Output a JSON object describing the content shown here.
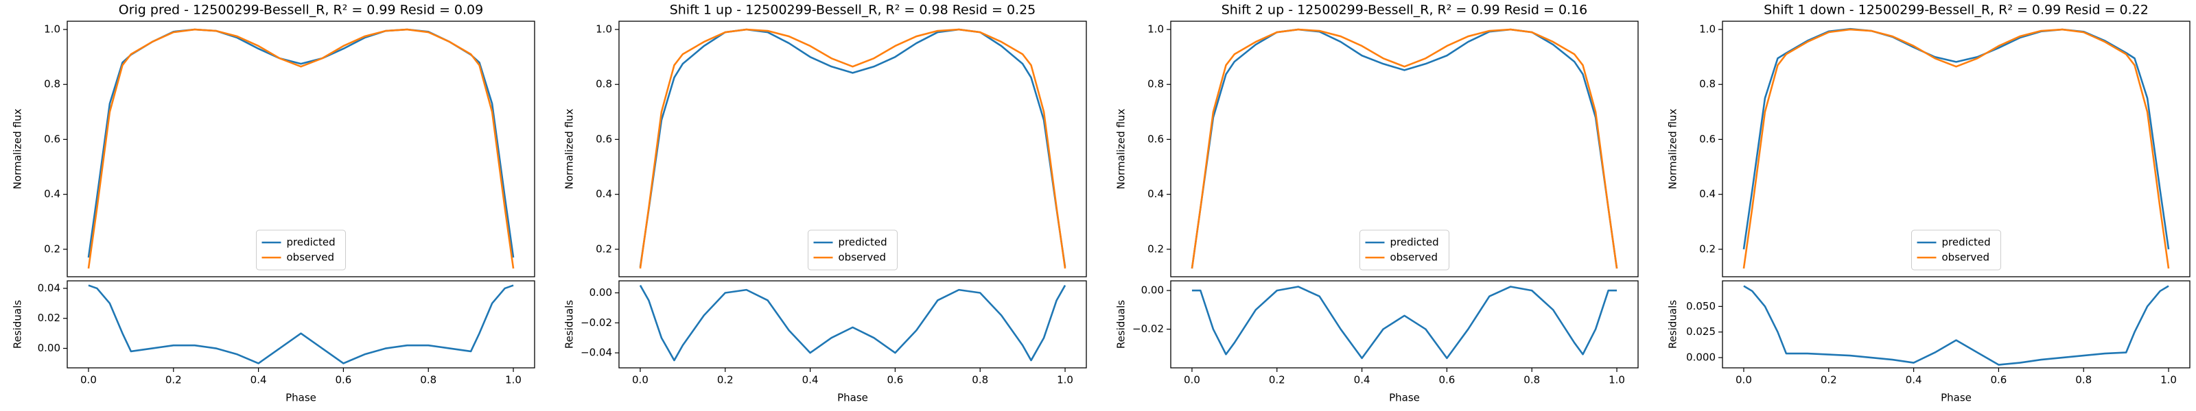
{
  "chart_data": [
    {
      "type": "line",
      "title": "Orig pred - 12500299-Bessell_R, R² = 0.99 Resid = 0.09",
      "ylabel": "Normalized flux",
      "legend": "lower center",
      "x": [
        0,
        0.02,
        0.05,
        0.08,
        0.1,
        0.15,
        0.2,
        0.25,
        0.3,
        0.35,
        0.4,
        0.45,
        0.5,
        0.55,
        0.6,
        0.65,
        0.7,
        0.75,
        0.8,
        0.85,
        0.9,
        0.92,
        0.95,
        0.98,
        1.0
      ],
      "xlim": [
        -0.05,
        1.05
      ],
      "ylim": [
        0.1,
        1.03
      ],
      "yticks": [
        0.2,
        0.4,
        0.6,
        0.8,
        {
          "value": 1,
          "label": "1.0"
        }
      ],
      "series": [
        {
          "name": "predicted",
          "color": "#1f77b4",
          "values": [
            0.17,
            0.39,
            0.73,
            0.88,
            0.908,
            0.955,
            0.992,
            1.0,
            0.995,
            0.97,
            0.93,
            0.895,
            0.875,
            0.895,
            0.93,
            0.97,
            0.995,
            1.0,
            0.992,
            0.955,
            0.908,
            0.88,
            0.73,
            0.39,
            0.17
          ]
        },
        {
          "name": "observed",
          "color": "#ff7f0e",
          "values": [
            0.13,
            0.35,
            0.7,
            0.87,
            0.91,
            0.955,
            0.99,
            1.0,
            0.995,
            0.975,
            0.94,
            0.895,
            0.865,
            0.895,
            0.94,
            0.975,
            0.995,
            1.0,
            0.99,
            0.955,
            0.91,
            0.87,
            0.7,
            0.35,
            0.13
          ]
        }
      ]
    },
    {
      "type": "line",
      "ylabel": "Residuals",
      "xlabel": "Phase",
      "color": "#1f77b4",
      "x": [
        0,
        0.02,
        0.05,
        0.08,
        0.1,
        0.15,
        0.2,
        0.25,
        0.3,
        0.35,
        0.4,
        0.45,
        0.5,
        0.55,
        0.6,
        0.65,
        0.7,
        0.75,
        0.8,
        0.85,
        0.9,
        0.92,
        0.95,
        0.98,
        1.0
      ],
      "values": [
        0.042,
        0.04,
        0.03,
        0.01,
        -0.002,
        0.0,
        0.002,
        0.002,
        0.0,
        -0.004,
        -0.01,
        0.0,
        0.01,
        0.0,
        -0.01,
        -0.004,
        0.0,
        0.002,
        0.002,
        0.0,
        -0.002,
        0.01,
        0.03,
        0.04,
        0.042
      ],
      "xlim": [
        -0.05,
        1.05
      ],
      "ylim": [
        -0.013,
        0.045
      ],
      "xticks": [
        {
          "value": 0,
          "label": "0.0"
        },
        0.2,
        0.4,
        0.6,
        0.8,
        {
          "value": 1,
          "label": "1.0"
        }
      ],
      "yticks": [
        {
          "value": 0,
          "label": "0.00"
        },
        {
          "value": 0.02,
          "label": "0.02"
        },
        {
          "value": 0.04,
          "label": "0.04"
        }
      ]
    },
    {
      "type": "line",
      "title": "Shift 1 up - 12500299-Bessell_R, R² = 0.98 Resid = 0.25",
      "ylabel": "Normalized flux",
      "legend": "lower center",
      "x": [
        0,
        0.02,
        0.05,
        0.08,
        0.1,
        0.15,
        0.2,
        0.25,
        0.3,
        0.35,
        0.4,
        0.45,
        0.5,
        0.55,
        0.6,
        0.65,
        0.7,
        0.75,
        0.8,
        0.85,
        0.9,
        0.92,
        0.95,
        0.98,
        1.0
      ],
      "xlim": [
        -0.05,
        1.05
      ],
      "ylim": [
        0.1,
        1.03
      ],
      "yticks": [
        0.2,
        0.4,
        0.6,
        0.8,
        {
          "value": 1,
          "label": "1.0"
        }
      ],
      "series": [
        {
          "name": "predicted",
          "color": "#1f77b4",
          "values": [
            0.135,
            0.345,
            0.67,
            0.825,
            0.875,
            0.94,
            0.99,
            1.0,
            0.99,
            0.95,
            0.9,
            0.865,
            0.842,
            0.865,
            0.9,
            0.95,
            0.99,
            1.0,
            0.99,
            0.94,
            0.875,
            0.825,
            0.67,
            0.345,
            0.135
          ]
        },
        {
          "name": "observed",
          "color": "#ff7f0e",
          "values": [
            0.13,
            0.35,
            0.7,
            0.87,
            0.91,
            0.955,
            0.99,
            1.0,
            0.995,
            0.975,
            0.94,
            0.895,
            0.865,
            0.895,
            0.94,
            0.975,
            0.995,
            1.0,
            0.99,
            0.955,
            0.91,
            0.87,
            0.7,
            0.35,
            0.13
          ]
        }
      ]
    },
    {
      "type": "line",
      "ylabel": "Residuals",
      "xlabel": "Phase",
      "color": "#1f77b4",
      "x": [
        0,
        0.02,
        0.05,
        0.08,
        0.1,
        0.15,
        0.2,
        0.25,
        0.3,
        0.35,
        0.4,
        0.45,
        0.5,
        0.55,
        0.6,
        0.65,
        0.7,
        0.75,
        0.8,
        0.85,
        0.9,
        0.92,
        0.95,
        0.98,
        1.0
      ],
      "values": [
        0.005,
        -0.005,
        -0.03,
        -0.045,
        -0.035,
        -0.015,
        0.0,
        0.002,
        -0.005,
        -0.025,
        -0.04,
        -0.03,
        -0.023,
        -0.03,
        -0.04,
        -0.025,
        -0.005,
        0.002,
        0.0,
        -0.015,
        -0.035,
        -0.045,
        -0.03,
        -0.005,
        0.005
      ],
      "xlim": [
        -0.05,
        1.05
      ],
      "ylim": [
        -0.05,
        0.008
      ],
      "xticks": [
        {
          "value": 0,
          "label": "0.0"
        },
        0.2,
        0.4,
        0.6,
        0.8,
        {
          "value": 1,
          "label": "1.0"
        }
      ],
      "yticks": [
        {
          "value": -0.04,
          "label": "−0.04"
        },
        {
          "value": -0.02,
          "label": "−0.02"
        },
        {
          "value": 0,
          "label": "0.00"
        }
      ]
    },
    {
      "type": "line",
      "title": "Shift 2 up - 12500299-Bessell_R, R² = 0.99 Resid = 0.16",
      "ylabel": "Normalized flux",
      "legend": "lower center",
      "x": [
        0,
        0.02,
        0.05,
        0.08,
        0.1,
        0.15,
        0.2,
        0.25,
        0.3,
        0.35,
        0.4,
        0.45,
        0.5,
        0.55,
        0.6,
        0.65,
        0.7,
        0.75,
        0.8,
        0.85,
        0.9,
        0.92,
        0.95,
        0.98,
        1.0
      ],
      "xlim": [
        -0.05,
        1.05
      ],
      "ylim": [
        0.1,
        1.03
      ],
      "yticks": [
        0.2,
        0.4,
        0.6,
        0.8,
        {
          "value": 1,
          "label": "1.0"
        }
      ],
      "series": [
        {
          "name": "predicted",
          "color": "#1f77b4",
          "values": [
            0.13,
            0.35,
            0.68,
            0.837,
            0.883,
            0.945,
            0.99,
            1.0,
            0.992,
            0.955,
            0.905,
            0.875,
            0.852,
            0.875,
            0.905,
            0.955,
            0.992,
            1.0,
            0.99,
            0.945,
            0.883,
            0.837,
            0.68,
            0.35,
            0.13
          ]
        },
        {
          "name": "observed",
          "color": "#ff7f0e",
          "values": [
            0.13,
            0.35,
            0.7,
            0.87,
            0.91,
            0.955,
            0.99,
            1.0,
            0.995,
            0.975,
            0.94,
            0.895,
            0.865,
            0.895,
            0.94,
            0.975,
            0.995,
            1.0,
            0.99,
            0.955,
            0.91,
            0.87,
            0.7,
            0.35,
            0.13
          ]
        }
      ]
    },
    {
      "type": "line",
      "ylabel": "Residuals",
      "xlabel": "Phase",
      "color": "#1f77b4",
      "x": [
        0,
        0.02,
        0.05,
        0.08,
        0.1,
        0.15,
        0.2,
        0.25,
        0.3,
        0.35,
        0.4,
        0.45,
        0.5,
        0.55,
        0.6,
        0.65,
        0.7,
        0.75,
        0.8,
        0.85,
        0.9,
        0.92,
        0.95,
        0.98,
        1.0
      ],
      "values": [
        0,
        0,
        -0.02,
        -0.033,
        -0.027,
        -0.01,
        0.0,
        0.002,
        -0.003,
        -0.02,
        -0.035,
        -0.02,
        -0.013,
        -0.02,
        -0.035,
        -0.02,
        -0.003,
        0.002,
        0,
        -0.01,
        -0.027,
        -0.033,
        -0.02,
        0,
        0
      ],
      "xlim": [
        -0.05,
        1.05
      ],
      "ylim": [
        -0.04,
        0.005
      ],
      "xticks": [
        {
          "value": 0,
          "label": "0.0"
        },
        0.2,
        0.4,
        0.6,
        0.8,
        {
          "value": 1,
          "label": "1.0"
        }
      ],
      "yticks": [
        {
          "value": -0.02,
          "label": "−0.02"
        },
        {
          "value": 0,
          "label": "0.00"
        }
      ]
    },
    {
      "type": "line",
      "title": "Shift 1 down - 12500299-Bessell_R, R² = 0.99 Resid = 0.22",
      "ylabel": "Normalized flux",
      "legend": "lower center",
      "x": [
        0,
        0.02,
        0.05,
        0.08,
        0.1,
        0.15,
        0.2,
        0.25,
        0.3,
        0.35,
        0.4,
        0.45,
        0.5,
        0.55,
        0.6,
        0.65,
        0.7,
        0.75,
        0.8,
        0.85,
        0.9,
        0.92,
        0.95,
        0.98,
        1.0
      ],
      "xlim": [
        -0.05,
        1.05
      ],
      "ylim": [
        0.1,
        1.03
      ],
      "yticks": [
        0.2,
        0.4,
        0.6,
        0.8,
        {
          "value": 1,
          "label": "1.0"
        }
      ],
      "series": [
        {
          "name": "predicted",
          "color": "#1f77b4",
          "values": [
            0.2,
            0.415,
            0.75,
            0.895,
            0.914,
            0.959,
            0.993,
            1.002,
            0.995,
            0.973,
            0.935,
            0.9,
            0.882,
            0.9,
            0.933,
            0.97,
            0.993,
            1.0,
            0.992,
            0.959,
            0.915,
            0.895,
            0.75,
            0.415,
            0.2
          ]
        },
        {
          "name": "observed",
          "color": "#ff7f0e",
          "values": [
            0.13,
            0.35,
            0.7,
            0.87,
            0.91,
            0.955,
            0.99,
            1.0,
            0.995,
            0.975,
            0.94,
            0.895,
            0.865,
            0.895,
            0.94,
            0.975,
            0.995,
            1.0,
            0.99,
            0.955,
            0.91,
            0.87,
            0.7,
            0.35,
            0.13
          ]
        }
      ]
    },
    {
      "type": "line",
      "ylabel": "Residuals",
      "xlabel": "Phase",
      "color": "#1f77b4",
      "x": [
        0,
        0.02,
        0.05,
        0.08,
        0.1,
        0.15,
        0.2,
        0.25,
        0.3,
        0.35,
        0.4,
        0.45,
        0.5,
        0.55,
        0.6,
        0.65,
        0.7,
        0.75,
        0.8,
        0.85,
        0.9,
        0.92,
        0.95,
        0.98,
        1.0
      ],
      "values": [
        0.07,
        0.065,
        0.05,
        0.025,
        0.004,
        0.004,
        0.003,
        0.002,
        0.0,
        -0.002,
        -0.005,
        0.005,
        0.017,
        0.005,
        -0.007,
        -0.005,
        -0.002,
        0,
        0.002,
        0.004,
        0.005,
        0.025,
        0.05,
        0.065,
        0.07
      ],
      "xlim": [
        -0.05,
        1.05
      ],
      "ylim": [
        -0.01,
        0.075
      ],
      "xticks": [
        {
          "value": 0,
          "label": "0.0"
        },
        0.2,
        0.4,
        0.6,
        0.8,
        {
          "value": 1,
          "label": "1.0"
        }
      ],
      "yticks": [
        {
          "value": 0,
          "label": "0.000"
        },
        {
          "value": 0.025,
          "label": "0.025"
        },
        {
          "value": 0.05,
          "label": "0.050"
        }
      ]
    }
  ]
}
